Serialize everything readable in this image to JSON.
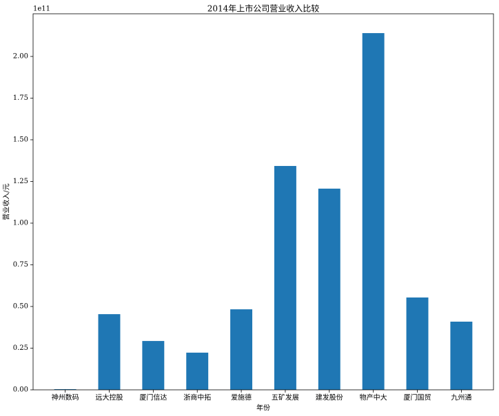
{
  "chart_data": {
    "type": "bar",
    "title": "2014年上市公司营业收入比较",
    "x_label": "年份",
    "y_label": "营业收入/元",
    "y_offset_label": "1e11",
    "categories": [
      "神州数码",
      "远大控股",
      "厦门信达",
      "浙商中拓",
      "爱施德",
      "五矿发展",
      "建发股份",
      "物产中大",
      "厦门国贸",
      "九州通"
    ],
    "values": [
      0.004,
      0.454,
      0.293,
      0.223,
      0.483,
      1.343,
      1.207,
      2.14,
      0.554,
      0.409
    ],
    "color": "#1f77b4",
    "ylim": [
      0,
      2.256
    ],
    "yticks": [
      {
        "value": 0,
        "label": "0.00"
      },
      0.25,
      {
        "value": 0.5,
        "label": "0.50"
      },
      0.75,
      {
        "value": 1,
        "label": "1.00"
      },
      1.25,
      {
        "value": 1.5,
        "label": "1.50"
      },
      1.75,
      {
        "value": 2,
        "label": "2.00"
      }
    ],
    "grid": false
  }
}
